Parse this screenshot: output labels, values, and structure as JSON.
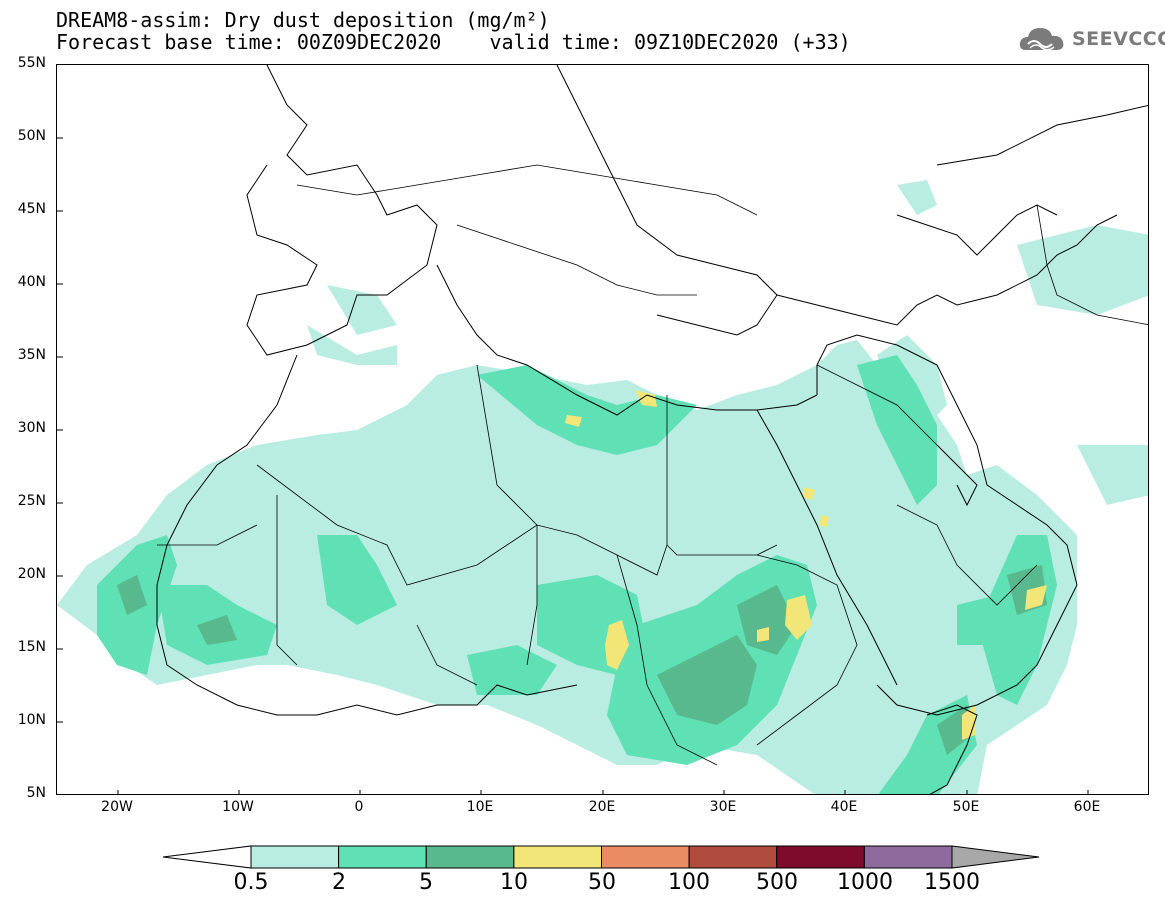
{
  "title": {
    "line1": "DREAM8-assim: Dry dust deposition (mg/m²)",
    "base_time": "Forecast base time: 00Z09DEC2020",
    "valid_time": "valid time: 09Z10DEC2020 (+33)"
  },
  "logo": {
    "icon": "cloud-icon",
    "text": "SEEVCCC"
  },
  "map": {
    "lon_range": [
      -25,
      65
    ],
    "lat_range": [
      5,
      55
    ],
    "lat_ticks": [
      "55N",
      "50N",
      "45N",
      "40N",
      "35N",
      "30N",
      "25N",
      "20N",
      "15N",
      "10N",
      "5N"
    ],
    "lon_ticks": [
      "20W",
      "10W",
      "0",
      "10E",
      "20E",
      "30E",
      "40E",
      "50E",
      "60E"
    ]
  },
  "colorbar": {
    "labels": [
      "0.5",
      "2",
      "5",
      "10",
      "50",
      "100",
      "500",
      "1000",
      "1500"
    ],
    "colors": [
      "#b9ede2",
      "#5fe0b5",
      "#58b98f",
      "#f2e678",
      "#e98b63",
      "#b04c3d",
      "#7e0a2c",
      "#8e6b9c"
    ],
    "over_color": "#a8a8a8"
  }
}
